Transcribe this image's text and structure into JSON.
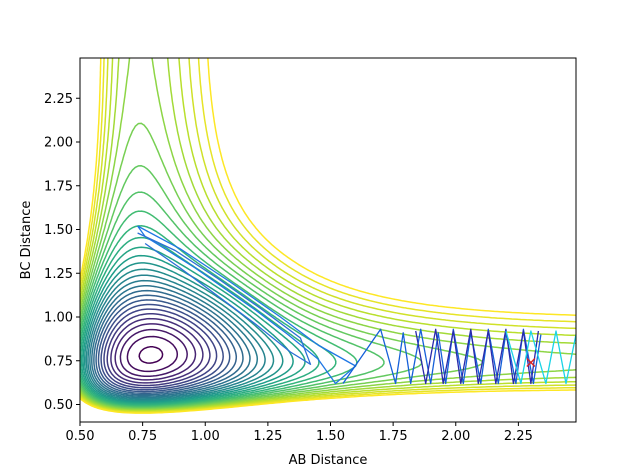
{
  "chart_data": {
    "type": "contour",
    "title": "",
    "xlabel": "AB Distance",
    "ylabel": "BC Distance",
    "xlim": [
      0.5,
      2.48
    ],
    "ylim": [
      0.4,
      2.48
    ],
    "x_ticks": [
      "0.50",
      "0.75",
      "1.00",
      "1.25",
      "1.50",
      "1.75",
      "2.00",
      "2.25"
    ],
    "y_ticks": [
      "0.50",
      "0.75",
      "1.00",
      "1.25",
      "1.50",
      "1.75",
      "2.00",
      "2.25"
    ],
    "grid": false,
    "legend": "none",
    "contour_levels": 30,
    "colormap": "viridis",
    "marker": {
      "x": 2.3,
      "y": 0.74,
      "symbol": "x",
      "color": "#d62728"
    },
    "trajectories": [
      {
        "color": "#1f77e4",
        "x": [
          0.73,
          0.9,
          1.1,
          1.3,
          1.45,
          1.6,
          1.52,
          1.45,
          1.33,
          1.2,
          1.08,
          0.96,
          0.85,
          0.76,
          0.73
        ],
        "y": [
          1.52,
          1.39,
          1.2,
          1.0,
          0.84,
          0.72,
          0.62,
          0.76,
          0.9,
          1.04,
          1.16,
          1.28,
          1.38,
          1.46,
          1.52
        ]
      },
      {
        "color": "#2b6fd6",
        "x": [
          0.73,
          0.88,
          1.05,
          1.22,
          1.38,
          1.42,
          1.34,
          1.2,
          1.05,
          0.9,
          0.76
        ],
        "y": [
          1.48,
          1.38,
          1.22,
          1.05,
          0.88,
          0.73,
          0.8,
          0.96,
          1.12,
          1.28,
          1.42
        ]
      },
      {
        "color": "#1560d9",
        "x": [
          1.55,
          1.7,
          1.76,
          1.79,
          1.82,
          1.86,
          1.9,
          1.93,
          1.96,
          1.99,
          2.03,
          2.06,
          2.1,
          2.13,
          2.17,
          2.2,
          2.24,
          2.27,
          2.31,
          2.34
        ],
        "y": [
          0.62,
          0.93,
          0.62,
          0.91,
          0.62,
          0.93,
          0.62,
          0.91,
          0.62,
          0.93,
          0.62,
          0.91,
          0.62,
          0.93,
          0.62,
          0.91,
          0.62,
          0.93,
          0.62,
          0.9
        ]
      },
      {
        "color": "#2a2aaa",
        "x": [
          1.84,
          1.88,
          1.92,
          1.95,
          1.99,
          2.02,
          2.06,
          2.09,
          2.13,
          2.16,
          2.2,
          2.23,
          2.27,
          2.3,
          2.33
        ],
        "y": [
          0.92,
          0.62,
          0.93,
          0.62,
          0.92,
          0.62,
          0.93,
          0.62,
          0.92,
          0.62,
          0.93,
          0.62,
          0.92,
          0.62,
          0.92
        ]
      },
      {
        "color": "#1ad4e6",
        "x": [
          2.2,
          2.26,
          2.3,
          2.36,
          2.4,
          2.44,
          2.48
        ],
        "y": [
          0.92,
          0.62,
          0.92,
          0.62,
          0.92,
          0.62,
          0.9
        ]
      }
    ]
  }
}
